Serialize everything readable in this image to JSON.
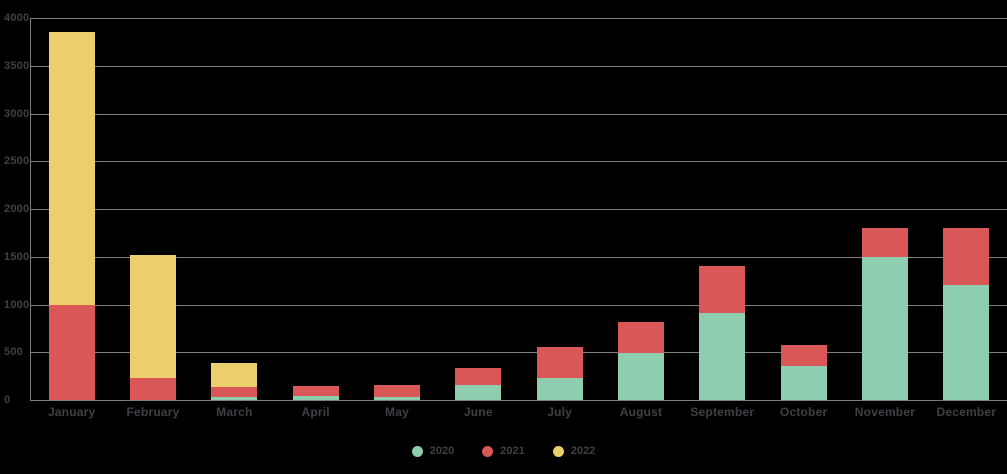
{
  "chart_data": {
    "type": "bar",
    "stacked": true,
    "title": "",
    "xlabel": "",
    "ylabel": "",
    "categories": [
      "January",
      "February",
      "March",
      "April",
      "May",
      "June",
      "July",
      "August",
      "September",
      "October",
      "November",
      "December"
    ],
    "series": [
      {
        "name": "2020",
        "color": "#8fcdb0",
        "values": [
          0,
          0,
          30,
          40,
          30,
          160,
          230,
          490,
          910,
          355,
          1500,
          1200
        ]
      },
      {
        "name": "2021",
        "color": "#d95757",
        "values": [
          1000,
          230,
          110,
          110,
          125,
          175,
          325,
          325,
          490,
          220,
          300,
          600
        ]
      },
      {
        "name": "2022",
        "color": "#ecce6d",
        "values": [
          2850,
          1290,
          250,
          0,
          0,
          0,
          0,
          0,
          0,
          0,
          0,
          0
        ]
      }
    ],
    "ylim": [
      0,
      4000
    ],
    "yticks": [
      0,
      500,
      1000,
      1500,
      2000,
      2500,
      3000,
      3500,
      4000
    ],
    "grid": true,
    "legend_position": "bottom",
    "legend_labels": [
      "2020",
      "2021",
      "2022"
    ]
  },
  "colors": {
    "background": "#000000",
    "gridline": "#7d7d7d",
    "text": "#3f4046"
  }
}
